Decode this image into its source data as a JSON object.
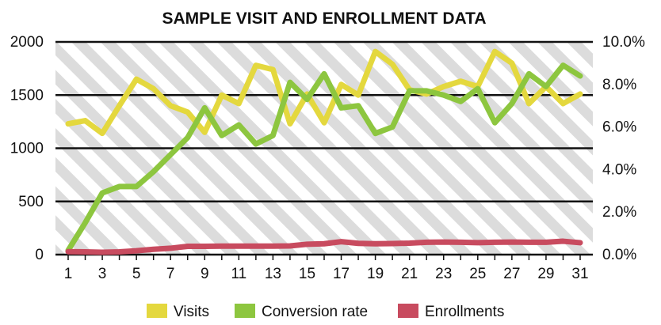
{
  "chart_data": {
    "type": "line",
    "title": "SAMPLE VISIT AND ENROLLMENT DATA",
    "xlabel": "",
    "ylabel": "",
    "x": [
      1,
      2,
      3,
      4,
      5,
      6,
      7,
      8,
      9,
      10,
      11,
      12,
      13,
      14,
      15,
      16,
      17,
      18,
      19,
      20,
      21,
      22,
      23,
      24,
      25,
      26,
      27,
      28,
      29,
      30,
      31
    ],
    "x_tick_labels": [
      "1",
      "3",
      "5",
      "7",
      "9",
      "11",
      "13",
      "15",
      "17",
      "19",
      "21",
      "23",
      "25",
      "27",
      "29",
      "31"
    ],
    "y_left": {
      "range": [
        0,
        2000
      ],
      "tick_labels": [
        "0",
        "500",
        "1000",
        "1500",
        "2000"
      ]
    },
    "y_right": {
      "range": [
        0,
        10
      ],
      "unit": "%",
      "tick_labels": [
        "0.0%",
        "2.0%",
        "4.0%",
        "6.0%",
        "8.0%",
        "10.0%"
      ]
    },
    "grid": true,
    "background_hatch": true,
    "legend_position": "bottom",
    "series": [
      {
        "name": "Visits",
        "axis": "left",
        "color": "#e4d83e",
        "values": [
          1230,
          1260,
          1140,
          1400,
          1650,
          1560,
          1400,
          1340,
          1150,
          1500,
          1420,
          1780,
          1740,
          1230,
          1510,
          1240,
          1600,
          1500,
          1910,
          1790,
          1550,
          1510,
          1580,
          1630,
          1580,
          1910,
          1800,
          1420,
          1580,
          1420,
          1510
        ]
      },
      {
        "name": "Conversion rate",
        "axis": "left",
        "unit_axis": "right",
        "color": "#8dc63f",
        "values": [
          0.2,
          1.5,
          2.9,
          3.2,
          3.2,
          3.9,
          4.7,
          5.5,
          6.9,
          5.6,
          6.1,
          5.2,
          5.6,
          8.1,
          7.3,
          8.5,
          6.9,
          7.0,
          5.7,
          6.0,
          7.7,
          7.7,
          7.5,
          7.2,
          7.8,
          6.2,
          7.1,
          8.5,
          7.9,
          8.9,
          8.4
        ]
      },
      {
        "name": "Enrollments",
        "axis": "left",
        "color": "#c84b5f",
        "values": [
          28,
          26,
          22,
          26,
          36,
          50,
          60,
          78,
          78,
          80,
          80,
          80,
          80,
          82,
          98,
          102,
          122,
          106,
          102,
          104,
          108,
          116,
          118,
          116,
          112,
          116,
          118,
          116,
          116,
          126,
          112
        ]
      }
    ]
  }
}
